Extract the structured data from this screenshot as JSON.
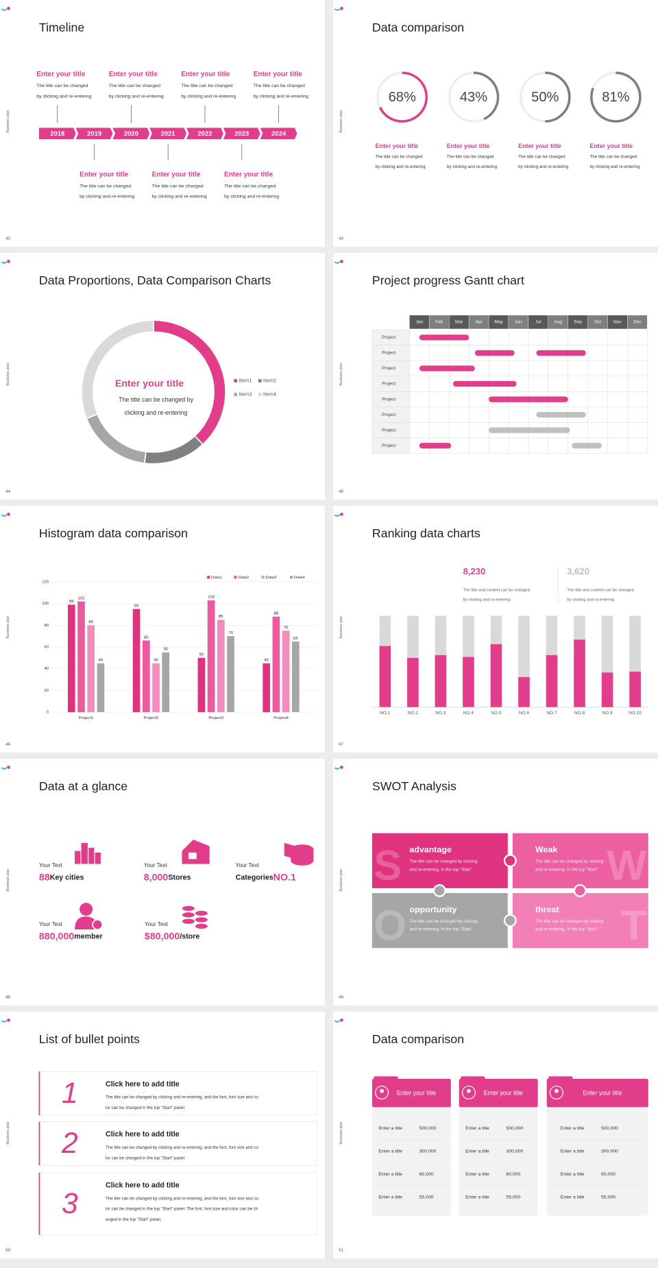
{
  "side_label": "Business plan",
  "slides": [
    {
      "number": "42",
      "title": "Timeline",
      "years": [
        "2018",
        "2019",
        "2020",
        "2021",
        "2022",
        "2023",
        "2024"
      ],
      "top_items": [
        {
          "title": "Enter your title",
          "lines": [
            "The title can be changed",
            "by clicking and re-entering"
          ]
        },
        {
          "title": "Enter your title",
          "lines": [
            "The title can be changed",
            "by clicking and re-entering"
          ]
        },
        {
          "title": "Enter your title",
          "lines": [
            "The title can be changed",
            "by clicking and re-entering"
          ]
        },
        {
          "title": "Enter your title",
          "lines": [
            "The title can be changed",
            "by clicking and re-entering"
          ]
        }
      ],
      "bottom_items": [
        {
          "title": "Enter your title",
          "lines": [
            "The title can be changed",
            "by clicking and re-entering"
          ]
        },
        {
          "title": "Enter your title",
          "lines": [
            "The title can be changed",
            "by clicking and re-entering"
          ]
        },
        {
          "title": "Enter your title",
          "lines": [
            "The title can be changed",
            "by clicking and re-entering"
          ]
        }
      ]
    },
    {
      "number": "43",
      "title": "Data comparison",
      "values": [
        68,
        43,
        50,
        81
      ],
      "value_labels": [
        "68%",
        "43%",
        "50%",
        "81%"
      ],
      "colors": [
        "#e23d8a",
        "#7f7f7f",
        "#7f7f7f",
        "#7f7f7f"
      ],
      "items": [
        {
          "title": "Enter your title",
          "lines": [
            "The title can be changed",
            "by clicking and re-entering"
          ]
        },
        {
          "title": "Enter your title",
          "lines": [
            "The title can be changed",
            "by clicking and re-entering"
          ]
        },
        {
          "title": "Enter your title",
          "lines": [
            "The title can be changed",
            "by clicking and re-entering"
          ]
        },
        {
          "title": "Enter your title",
          "lines": [
            "The title can be changed",
            "by clicking and re-entering"
          ]
        }
      ]
    },
    {
      "number": "44",
      "title": "Data Proportions, Data Comparison Charts",
      "center_title": "Enter your title",
      "center_lines": [
        "The title can be changed by",
        "clicking and re-entering"
      ],
      "series": [
        {
          "name": "Item1",
          "color": "#e23d8a",
          "value": 38
        },
        {
          "name": "Item2",
          "color": "#808080",
          "value": 14
        },
        {
          "name": "Item3",
          "color": "#a6a6a6",
          "value": 17
        },
        {
          "name": "Item4",
          "color": "#d9d9d9",
          "value": 31
        }
      ]
    },
    {
      "number": "45",
      "title": "Project progress Gantt chart",
      "months": [
        "Jan",
        "Feb",
        "Mar",
        "Apr",
        "May",
        "Jun",
        "Jul",
        "Aug",
        "Sep",
        "Oct",
        "Nov",
        "Dec"
      ],
      "rows": [
        {
          "label": "Project",
          "bars": [
            {
              "start": 0.5,
              "end": 3.0,
              "color": "#e23d8a"
            }
          ]
        },
        {
          "label": "Project",
          "bars": [
            {
              "start": 3.3,
              "end": 5.3,
              "color": "#e23d8a"
            },
            {
              "start": 6.4,
              "end": 8.9,
              "color": "#e23d8a"
            }
          ]
        },
        {
          "label": "Project",
          "bars": [
            {
              "start": 0.5,
              "end": 3.3,
              "color": "#e23d8a"
            }
          ]
        },
        {
          "label": "Project",
          "bars": [
            {
              "start": 2.2,
              "end": 5.4,
              "color": "#e23d8a"
            }
          ]
        },
        {
          "label": "Project",
          "bars": [
            {
              "start": 4.0,
              "end": 8.0,
              "color": "#e23d8a"
            }
          ]
        },
        {
          "label": "Project",
          "bars": [
            {
              "start": 6.4,
              "end": 8.9,
              "color": "#c0c0c0"
            }
          ]
        },
        {
          "label": "Project",
          "bars": [
            {
              "start": 4.0,
              "end": 8.1,
              "color": "#c0c0c0"
            }
          ]
        },
        {
          "label": "Project",
          "bars": [
            {
              "start": 0.5,
              "end": 2.1,
              "color": "#e23d8a"
            },
            {
              "start": 8.2,
              "end": 9.7,
              "color": "#c0c0c0"
            }
          ]
        }
      ]
    },
    {
      "number": "46",
      "title": "Histogram data comparison",
      "categories": [
        "Project1",
        "Project2",
        "Project3",
        "Project4"
      ],
      "series": [
        {
          "name": "Data1",
          "color": "#e0337f",
          "values": [
            99,
            95,
            50,
            45
          ]
        },
        {
          "name": "Data2",
          "color": "#ec5a9e",
          "values": [
            102,
            66,
            103,
            88
          ]
        },
        {
          "name": "Data3",
          "color": "#f18cbd",
          "values": [
            80,
            45,
            85,
            75
          ]
        },
        {
          "name": "Data4",
          "color": "#a6a6a6",
          "values": [
            45,
            55,
            70,
            65
          ]
        }
      ],
      "ylim": [
        0,
        120
      ],
      "yticks": [
        0,
        20,
        40,
        60,
        80,
        100,
        120
      ]
    },
    {
      "number": "47",
      "title": "Ranking data charts",
      "stats": [
        {
          "value": "8,230",
          "color": "#e23d8a",
          "lines": [
            "The title and content can be changed",
            "by clicking and re-entering"
          ]
        },
        {
          "value": "3,620",
          "color": "#bfbfbf",
          "lines": [
            "The title and content can be changed",
            "by clicking and re-entering"
          ]
        }
      ],
      "categories": [
        "NO.1",
        "NO.2",
        "NO.3",
        "NO.4",
        "NO.5",
        "NO.6",
        "NO.7",
        "NO.8",
        "NO.9",
        "NO.10"
      ],
      "values": [
        67,
        54,
        57,
        55,
        69,
        33,
        57,
        74,
        38,
        39
      ],
      "ylim": [
        0,
        100
      ],
      "color": "#e23d8a",
      "track_color": "#d9d9d9"
    },
    {
      "number": "48",
      "title": "Data at a glance",
      "items": [
        {
          "label": "Your Text",
          "value": "88",
          "unit": "Key cities"
        },
        {
          "label": "Your Text",
          "value": "8,000",
          "unit": "Stores"
        },
        {
          "label": "Your Text",
          "prefix": "Categories",
          "value": "NO.1"
        },
        {
          "label": "Your Text",
          "value": "880,000",
          "unit": "member"
        },
        {
          "label": "Your Text",
          "value": "$80,000",
          "unit": "/store"
        }
      ]
    },
    {
      "number": "49",
      "title": "SWOT Analysis",
      "quadrants": [
        {
          "letter": "S",
          "title": "advantage",
          "color": "#e0337f",
          "lines": [
            "The title can be changed by clicking",
            "and re-entering. In the top \"Start\""
          ]
        },
        {
          "letter": "W",
          "title": "Weak",
          "color": "#ec5fa0",
          "lines": [
            "The title can be changed by clicking",
            "and re-entering. In the top \"Start\""
          ]
        },
        {
          "letter": "O",
          "title": "opportunity",
          "color": "#a6a6a6",
          "lines": [
            "The title can be changed by clicking",
            "and re-entering. In the top \"Start\""
          ]
        },
        {
          "letter": "T",
          "title": "threat",
          "color": "#f27fb6",
          "lines": [
            "The title can be changed by clicking",
            "and re-entering. In the top \"Start\""
          ]
        }
      ]
    },
    {
      "number": "50",
      "title": "List of bullet points",
      "items": [
        {
          "number": "1",
          "title": "Click here to add title",
          "lines": [
            "The title can be changed by clicking and re-entering, and the font, font size and co",
            "lor can be changed in the top \"Start\" panel"
          ]
        },
        {
          "number": "2",
          "title": "Click here to add title",
          "lines": [
            "The title can be changed by clicking and re-entering, and the font, font size and co",
            "lor can be changed in the top \"Start\" panel"
          ]
        },
        {
          "number": "3",
          "title": "Click here to add title",
          "lines": [
            "The title can be changed by clicking and re-entering, and the font, font size and co",
            "lor can be changed in the top \"Start\" panel. The font, font size and color can be ch",
            "anged in the top \"Start\" panel."
          ]
        }
      ]
    },
    {
      "number": "51",
      "title": "Data comparison",
      "cards": [
        {
          "title": "Enter your title",
          "rows": [
            {
              "label": "Enter a title",
              "value": "500,000"
            },
            {
              "label": "Enter a title",
              "value": "300,000"
            },
            {
              "label": "Enter a title",
              "value": "60,000"
            },
            {
              "label": "Enter a title",
              "value": "55,000"
            }
          ]
        },
        {
          "title": "Enter your title",
          "rows": [
            {
              "label": "Enter a title",
              "value": "500,000"
            },
            {
              "label": "Enter a title",
              "value": "300,000"
            },
            {
              "label": "Enter a title",
              "value": "60,000"
            },
            {
              "label": "Enter a title",
              "value": "55,000"
            }
          ]
        },
        {
          "title": "Enter your title",
          "rows": [
            {
              "label": "Enter a title",
              "value": "500,000"
            },
            {
              "label": "Enter a title",
              "value": "300,000"
            },
            {
              "label": "Enter a title",
              "value": "60,000"
            },
            {
              "label": "Enter a title",
              "value": "55,000"
            }
          ]
        }
      ]
    }
  ]
}
